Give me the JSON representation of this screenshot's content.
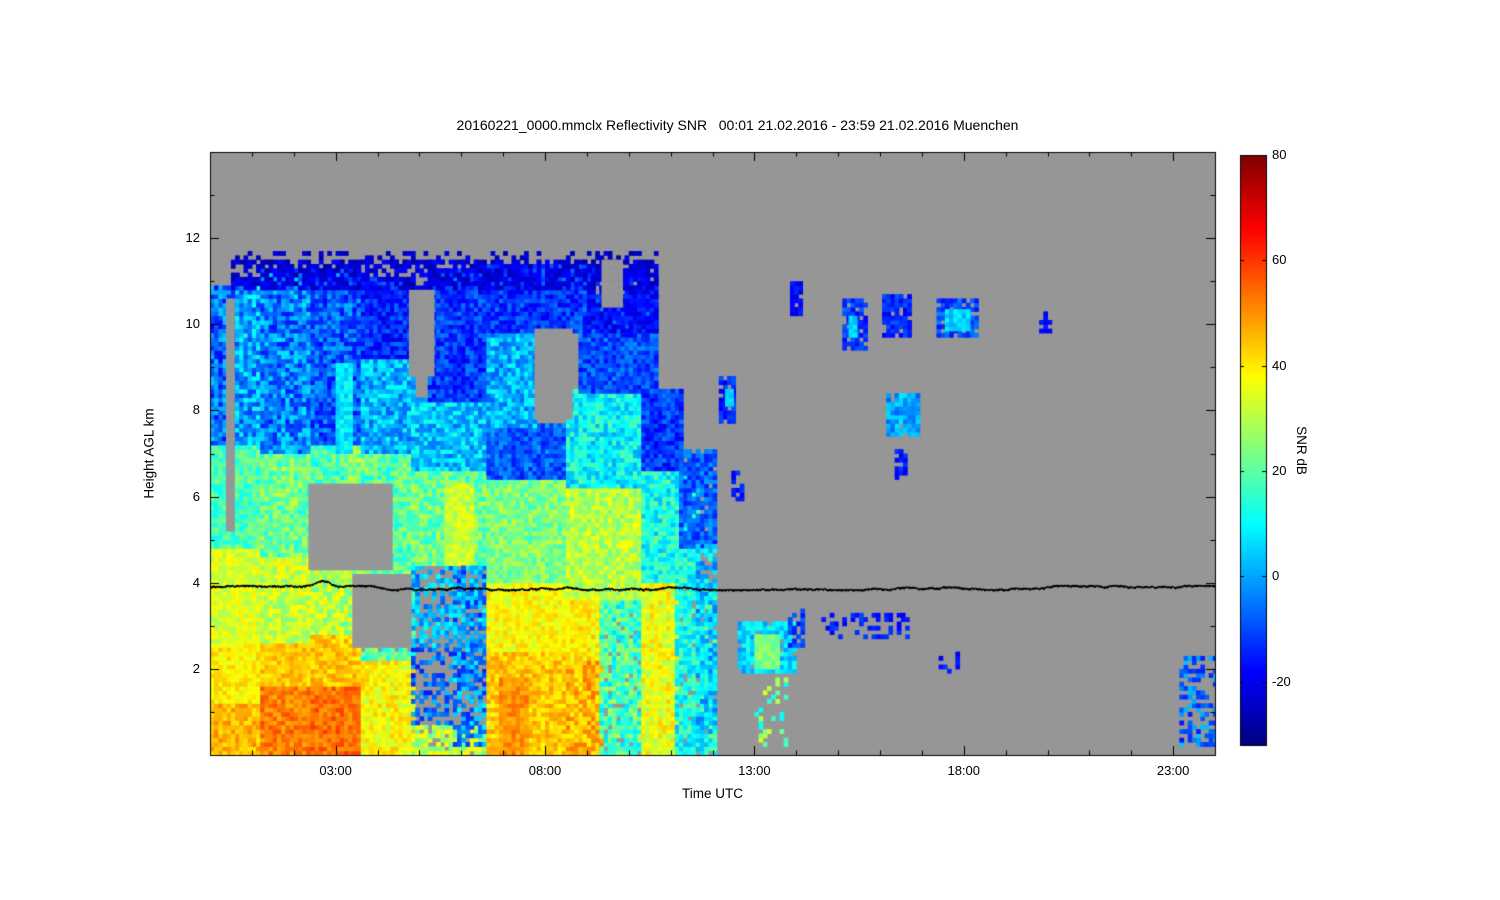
{
  "chart_data": {
    "type": "heatmap",
    "title": "20160221_0000.mmclx Reflectivity SNR   00:01 21.02.2016 - 23:59 21.02.2016 Muenchen",
    "xlabel": "Time UTC",
    "ylabel": "Height AGL km",
    "x_axis": {
      "unit": "hours UTC",
      "min": 0,
      "max": 24,
      "major_ticks": [
        3,
        8,
        13,
        18,
        23
      ],
      "major_tick_labels": [
        "03:00",
        "08:00",
        "13:00",
        "18:00",
        "23:00"
      ],
      "minor_tick_step": 1
    },
    "y_axis": {
      "unit": "km",
      "min": 0,
      "max": 14,
      "major_ticks": [
        2,
        4,
        6,
        8,
        10,
        12
      ],
      "minor_tick_step": 1
    },
    "colorbar": {
      "label": "SNR dB",
      "min": -32,
      "max": 80,
      "ticks": [
        80,
        60,
        40,
        20,
        0,
        -20
      ],
      "colormap": "jet"
    },
    "no_data_color": "#969696",
    "horizontal_line": {
      "height_km": 3.9,
      "color": "#000000"
    },
    "regions_format": [
      "t_start_h",
      "t_end_h",
      "h_bottom_km",
      "h_top_km",
      "snr_db_or_null_for_no_data",
      "noise_amp_db",
      "fill_fraction"
    ],
    "regions": [
      [
        0.0,
        1.2,
        0.0,
        1.2,
        46,
        6,
        1
      ],
      [
        0.0,
        1.2,
        1.2,
        2.6,
        40,
        5,
        1
      ],
      [
        0.0,
        1.2,
        2.6,
        4.8,
        34,
        6,
        1
      ],
      [
        0.0,
        1.2,
        4.8,
        7.2,
        18,
        8,
        1
      ],
      [
        0.0,
        0.6,
        7.2,
        10.8,
        -6,
        12,
        1
      ],
      [
        0.6,
        1.2,
        7.2,
        11.0,
        0,
        12,
        1
      ],
      [
        1.2,
        2.4,
        0.0,
        1.6,
        52,
        6,
        1
      ],
      [
        1.2,
        2.4,
        1.6,
        2.6,
        44,
        5,
        1
      ],
      [
        1.2,
        2.4,
        2.6,
        4.6,
        32,
        8,
        1
      ],
      [
        1.2,
        2.4,
        4.6,
        7.0,
        22,
        10,
        1
      ],
      [
        1.2,
        2.4,
        7.0,
        11.2,
        -4,
        12,
        1
      ],
      [
        2.4,
        3.6,
        0.0,
        1.6,
        54,
        6,
        1
      ],
      [
        2.4,
        3.6,
        1.6,
        2.8,
        44,
        6,
        1
      ],
      [
        2.4,
        3.6,
        2.8,
        4.4,
        30,
        10,
        1
      ],
      [
        2.4,
        3.2,
        4.4,
        7.2,
        18,
        10,
        1
      ],
      [
        3.2,
        3.6,
        4.4,
        7.2,
        24,
        10,
        1
      ],
      [
        2.4,
        3.6,
        7.2,
        11.2,
        -8,
        10,
        1
      ],
      [
        3.0,
        3.4,
        7.0,
        9.0,
        8,
        6,
        1
      ],
      [
        3.6,
        4.8,
        0.0,
        2.2,
        38,
        7,
        1
      ],
      [
        3.6,
        4.8,
        2.2,
        4.2,
        18,
        10,
        0.9
      ],
      [
        3.6,
        4.8,
        4.2,
        7.0,
        20,
        10,
        1
      ],
      [
        3.6,
        4.8,
        7.0,
        9.2,
        2,
        10,
        1
      ],
      [
        3.6,
        4.8,
        9.2,
        11.0,
        -14,
        8,
        1
      ],
      [
        4.8,
        6.6,
        0.0,
        0.7,
        30,
        10,
        0.85
      ],
      [
        4.8,
        6.6,
        0.7,
        2.5,
        -6,
        10,
        0.35
      ],
      [
        4.8,
        6.6,
        2.5,
        4.4,
        2,
        10,
        0.5
      ],
      [
        4.8,
        6.6,
        4.4,
        6.6,
        22,
        10,
        1
      ],
      [
        5.6,
        6.2,
        4.4,
        6.2,
        32,
        6,
        1
      ],
      [
        4.8,
        6.6,
        6.6,
        8.2,
        4,
        10,
        1
      ],
      [
        5.2,
        6.8,
        8.2,
        11.2,
        -12,
        8,
        1
      ],
      [
        5.8,
        6.6,
        0.2,
        4.4,
        -2,
        12,
        0.5
      ],
      [
        6.6,
        8.5,
        0.0,
        2.4,
        44,
        6,
        1
      ],
      [
        6.9,
        7.5,
        0.0,
        1.8,
        50,
        5,
        1
      ],
      [
        6.6,
        8.5,
        2.4,
        4.0,
        38,
        6,
        1
      ],
      [
        6.6,
        8.5,
        4.0,
        6.4,
        24,
        8,
        1
      ],
      [
        6.6,
        8.5,
        6.4,
        7.6,
        -8,
        8,
        1
      ],
      [
        6.6,
        7.7,
        7.6,
        9.8,
        2,
        10,
        1
      ],
      [
        6.6,
        9.0,
        9.8,
        11.3,
        -12,
        8,
        1
      ],
      [
        8.5,
        9.3,
        0.0,
        2.2,
        46,
        8,
        1
      ],
      [
        8.5,
        9.3,
        2.2,
        3.6,
        40,
        6,
        1
      ],
      [
        9.3,
        10.3,
        0.0,
        3.6,
        18,
        12,
        0.9
      ],
      [
        8.5,
        10.3,
        3.6,
        6.2,
        30,
        8,
        1
      ],
      [
        8.5,
        10.3,
        6.2,
        8.4,
        10,
        10,
        1
      ],
      [
        8.8,
        10.6,
        8.4,
        10.6,
        -10,
        8,
        1
      ],
      [
        9.0,
        10.6,
        9.8,
        11.2,
        -18,
        6,
        0.9
      ],
      [
        10.3,
        11.1,
        0.0,
        4.0,
        36,
        8,
        1
      ],
      [
        11.1,
        12.0,
        0.0,
        4.0,
        12,
        10,
        0.9
      ],
      [
        10.3,
        11.6,
        4.0,
        6.6,
        12,
        10,
        1
      ],
      [
        10.3,
        11.2,
        6.6,
        8.4,
        -12,
        8,
        1
      ],
      [
        11.2,
        12.0,
        4.8,
        7.0,
        -8,
        8,
        0.9
      ],
      [
        11.6,
        12.0,
        0.5,
        4.8,
        4,
        10,
        0.7
      ],
      [
        0.5,
        10.6,
        10.8,
        11.4,
        -22,
        5,
        0.6
      ],
      [
        0.5,
        10.6,
        11.4,
        11.7,
        -24,
        4,
        0.25
      ],
      [
        2.35,
        4.3,
        4.3,
        6.2,
        null,
        0,
        1
      ],
      [
        3.4,
        4.7,
        2.5,
        4.2,
        null,
        0,
        1
      ],
      [
        7.75,
        8.6,
        7.8,
        9.8,
        null,
        0,
        1
      ],
      [
        4.75,
        5.25,
        8.8,
        10.7,
        null,
        0,
        1
      ],
      [
        9.35,
        9.75,
        10.4,
        11.4,
        null,
        0,
        1
      ],
      [
        0.38,
        0.55,
        5.2,
        10.5,
        null,
        0,
        1
      ],
      [
        12.15,
        12.5,
        7.7,
        8.7,
        -14,
        6,
        0.8
      ],
      [
        12.3,
        12.45,
        8.1,
        8.45,
        6,
        4,
        1
      ],
      [
        12.45,
        12.7,
        5.9,
        6.5,
        -16,
        5,
        0.7
      ],
      [
        12.6,
        13.9,
        1.9,
        3.1,
        6,
        8,
        0.9
      ],
      [
        13.0,
        13.55,
        2.0,
        2.8,
        24,
        6,
        1
      ],
      [
        13.0,
        13.7,
        0.2,
        1.9,
        22,
        12,
        0.25
      ],
      [
        13.8,
        14.15,
        2.5,
        3.4,
        -12,
        6,
        0.5
      ],
      [
        13.85,
        14.05,
        10.2,
        10.9,
        -18,
        4,
        0.9
      ],
      [
        14.6,
        16.7,
        2.7,
        3.25,
        -15,
        5,
        0.3
      ],
      [
        15.1,
        15.6,
        9.4,
        10.5,
        -12,
        6,
        0.8
      ],
      [
        15.25,
        15.45,
        9.7,
        10.1,
        5,
        4,
        1
      ],
      [
        16.05,
        16.7,
        9.7,
        10.6,
        -14,
        6,
        0.8
      ],
      [
        16.15,
        16.95,
        7.4,
        8.35,
        0,
        8,
        0.95
      ],
      [
        16.35,
        16.6,
        6.4,
        7.05,
        -16,
        5,
        0.7
      ],
      [
        17.35,
        18.3,
        9.7,
        10.5,
        -10,
        7,
        0.85
      ],
      [
        17.55,
        18.1,
        9.85,
        10.3,
        5,
        5,
        1
      ],
      [
        17.4,
        17.85,
        1.9,
        2.4,
        -15,
        5,
        0.5
      ],
      [
        19.8,
        20.05,
        9.8,
        10.25,
        -18,
        4,
        0.8
      ],
      [
        23.15,
        24.0,
        0.2,
        2.3,
        -6,
        10,
        0.45
      ]
    ]
  }
}
